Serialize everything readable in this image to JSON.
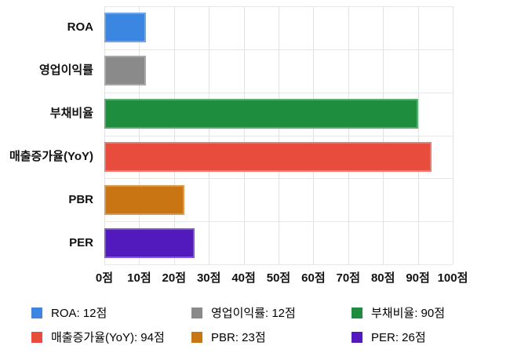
{
  "chart_data": {
    "type": "bar",
    "orientation": "horizontal",
    "title": "",
    "xlabel": "",
    "ylabel": "",
    "unit": "점",
    "categories": [
      "ROA",
      "영업이익률",
      "부채비율",
      "매출증가율(YoY)",
      "PBR",
      "PER"
    ],
    "values": [
      12,
      12,
      90,
      94,
      23,
      26
    ],
    "colors": [
      "#3B86E1",
      "#8A8A8A",
      "#1E8E3E",
      "#E74C3C",
      "#C97514",
      "#521ABC"
    ],
    "xlim": [
      0,
      100
    ],
    "xticks": [
      0,
      10,
      20,
      30,
      40,
      50,
      60,
      70,
      80,
      90,
      100
    ],
    "xtick_labels": [
      "0점",
      "10점",
      "20점",
      "30점",
      "40점",
      "50점",
      "60점",
      "70점",
      "80점",
      "90점",
      "100점"
    ],
    "grid": true,
    "legend": {
      "position": "bottom",
      "items": [
        {
          "label": "ROA: 12점",
          "color": "#3B86E1"
        },
        {
          "label": "영업이익률: 12점",
          "color": "#8A8A8A"
        },
        {
          "label": "부채비율: 90점",
          "color": "#1E8E3E"
        },
        {
          "label": "매출증가율(YoY): 94점",
          "color": "#E74C3C"
        },
        {
          "label": "PBR: 23점",
          "color": "#C97514"
        },
        {
          "label": "PER: 26점",
          "color": "#521ABC"
        }
      ]
    }
  }
}
